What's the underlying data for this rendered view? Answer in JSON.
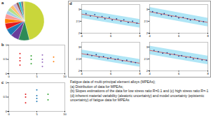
{
  "panel_labels": [
    "a",
    "b",
    "c",
    "d"
  ],
  "caption": [
    "Fatigue data of multi-principal element alloys (MPEAs);",
    "(a) Distribution of data for MPEAs;",
    "(b) Slopes estimations of the data for low stress ratio R=0.1 and (c) high stress ratio R=-1",
    "(d) inherent material variability (aleatoric uncertainty) and model uncertainty (epistemic uncertainty) of fatigue data for MPEAs"
  ],
  "chart_data": [
    {
      "type": "pie",
      "values": [
        46,
        9,
        7,
        6,
        5,
        4,
        4,
        3,
        3,
        3,
        3,
        2,
        2,
        2,
        1
      ],
      "colors": [
        "#c9d63b",
        "#2e8b57",
        "#6a3d9a",
        "#1f78b4",
        "#e31a1c",
        "#ff7f00",
        "#fb9a99",
        "#a6cee3",
        "#b2df8a",
        "#fdbf6f",
        "#cab2d6",
        "#8c564b",
        "#17becf",
        "#7f7f7f",
        "#ffd92f"
      ]
    },
    {
      "type": "scatter",
      "xlim": [
        0,
        10
      ],
      "ylim": [
        0,
        1
      ],
      "xticks": [
        0,
        5,
        10
      ],
      "yticks": [
        0,
        0.5,
        1
      ],
      "series": [
        {
          "color": "#e31a1c",
          "x": [
            2,
            2,
            2,
            2
          ],
          "values": [
            0.3,
            0.45,
            0.55,
            0.7
          ]
        },
        {
          "color": "#2ca02c",
          "x": [
            4,
            4,
            4
          ],
          "values": [
            0.35,
            0.5,
            0.62
          ]
        },
        {
          "color": "#9467bd",
          "x": [
            6,
            6,
            6,
            6
          ],
          "values": [
            0.25,
            0.4,
            0.5,
            0.65
          ]
        },
        {
          "color": "#ff7f0e",
          "x": [
            8,
            8
          ],
          "values": [
            0.42,
            0.58
          ]
        }
      ]
    },
    {
      "type": "scatter",
      "xlim": [
        0,
        10
      ],
      "ylim": [
        0,
        1
      ],
      "xticks": [
        0,
        5,
        10
      ],
      "yticks": [
        0,
        0.5,
        1
      ],
      "series": [
        {
          "color": "#e31a1c",
          "x": [
            3,
            3,
            3
          ],
          "values": [
            0.3,
            0.5,
            0.6
          ]
        },
        {
          "color": "#1f77b4",
          "x": [
            5,
            5,
            5,
            5
          ],
          "values": [
            0.35,
            0.45,
            0.55,
            0.75
          ]
        },
        {
          "color": "#2ca02c",
          "x": [
            7,
            7
          ],
          "values": [
            0.4,
            0.6
          ]
        }
      ]
    },
    {
      "type": "scatter",
      "xlim": [
        4,
        8
      ],
      "ylim": [
        2,
        3.2
      ],
      "xticks": [
        4,
        6,
        8
      ],
      "yticks": [
        2,
        2.5,
        3
      ],
      "points": {
        "color": "#1f3b8c",
        "x": [
          4.3,
          4.6,
          4.9,
          5.1,
          5.4,
          5.6,
          5.9,
          6.1,
          6.4,
          6.7,
          6.9,
          7.2,
          7.5,
          7.8
        ],
        "values": [
          2.82,
          2.72,
          2.78,
          2.65,
          2.7,
          2.6,
          2.66,
          2.55,
          2.6,
          2.5,
          2.56,
          2.45,
          2.5,
          2.42
        ]
      },
      "fit": {
        "color": "#e03030",
        "x": [
          4,
          8
        ],
        "values": [
          2.8,
          2.4
        ]
      },
      "band": {
        "color": "#8fdcf2",
        "x": [
          4,
          8
        ],
        "lower": [
          2.62,
          2.22
        ],
        "upper": [
          2.98,
          2.58
        ]
      }
    },
    {
      "type": "scatter",
      "xlim": [
        4,
        8
      ],
      "ylim": [
        2,
        3.2
      ],
      "xticks": [
        4,
        6,
        8
      ],
      "yticks": [
        2,
        2.5,
        3
      ],
      "points": {
        "color": "#1f3b8c",
        "x": [
          4.2,
          4.5,
          4.8,
          5.0,
          5.3,
          5.5,
          5.8,
          6.0,
          6.3,
          6.6,
          6.8,
          7.1,
          7.4,
          7.7
        ],
        "values": [
          2.9,
          2.85,
          2.78,
          2.82,
          2.74,
          2.7,
          2.72,
          2.64,
          2.66,
          2.6,
          2.55,
          2.58,
          2.5,
          2.48
        ]
      },
      "fit": {
        "color": "#e03030",
        "x": [
          4,
          8
        ],
        "values": [
          2.9,
          2.45
        ]
      },
      "band": {
        "color": "#8fdcf2",
        "x": [
          4,
          8
        ],
        "lower": [
          2.72,
          2.27
        ],
        "upper": [
          3.08,
          2.63
        ]
      }
    },
    {
      "type": "scatter",
      "xlim": [
        4,
        8
      ],
      "ylim": [
        2,
        3.2
      ],
      "xticks": [
        4,
        6,
        8
      ],
      "yticks": [
        2,
        2.5,
        3
      ],
      "points": {
        "color": "#1f3b8c",
        "x": [
          4.4,
          4.7,
          5.0,
          5.2,
          5.5,
          5.8,
          6.0,
          6.3,
          6.5,
          6.8,
          7.1,
          7.4,
          7.7
        ],
        "values": [
          2.7,
          2.64,
          2.68,
          2.58,
          2.6,
          2.52,
          2.55,
          2.48,
          2.5,
          2.42,
          2.45,
          2.38,
          2.35
        ]
      },
      "fit": {
        "color": "#e03030",
        "x": [
          4,
          8
        ],
        "values": [
          2.72,
          2.32
        ]
      },
      "band": {
        "color": "#8fdcf2",
        "x": [
          4,
          8
        ],
        "lower": [
          2.56,
          2.16
        ],
        "upper": [
          2.88,
          2.48
        ]
      }
    },
    {
      "type": "scatter",
      "xlim": [
        4,
        8
      ],
      "ylim": [
        2,
        3.2
      ],
      "xticks": [
        4,
        6,
        8
      ],
      "yticks": [
        2,
        2.5,
        3
      ],
      "points": {
        "color": "#1f3b8c",
        "x": [
          4.3,
          4.6,
          4.9,
          5.2,
          5.4,
          5.7,
          6.0,
          6.2,
          6.5,
          6.8,
          7.0,
          7.3,
          7.6,
          7.9
        ],
        "values": [
          2.86,
          2.8,
          2.74,
          2.76,
          2.68,
          2.7,
          2.62,
          2.64,
          2.56,
          2.58,
          2.5,
          2.52,
          2.46,
          2.44
        ]
      },
      "fit": {
        "color": "#e03030",
        "x": [
          4,
          8
        ],
        "values": [
          2.86,
          2.44
        ]
      },
      "band": {
        "color": "#8fdcf2",
        "x": [
          4,
          8
        ],
        "lower": [
          2.68,
          2.26
        ],
        "upper": [
          3.04,
          2.62
        ]
      }
    }
  ]
}
